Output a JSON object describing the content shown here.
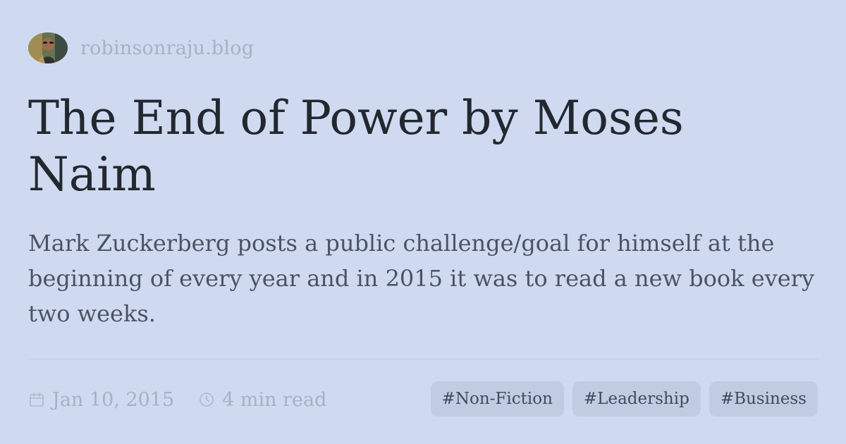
{
  "site": {
    "name": "robinsonraju.blog",
    "avatar_icon": "author-avatar"
  },
  "article": {
    "title": "The End of Power by Moses Naim",
    "description": "Mark Zuckerberg posts a public challenge/goal for himself at the beginning of every year and in 2015 it was to read a new book every two weeks."
  },
  "meta": {
    "date": "Jan 10, 2015",
    "date_icon": "calendar-icon",
    "read_time": "4 min read",
    "read_time_icon": "clock-icon"
  },
  "tags": [
    "#Non-Fiction",
    "#Leadership",
    "#Business"
  ],
  "colors": {
    "background": "#cfdaf1",
    "title": "#23272f",
    "body": "#4c5260",
    "muted": "#a8b1c1",
    "tag_background": "#c1cce2"
  }
}
